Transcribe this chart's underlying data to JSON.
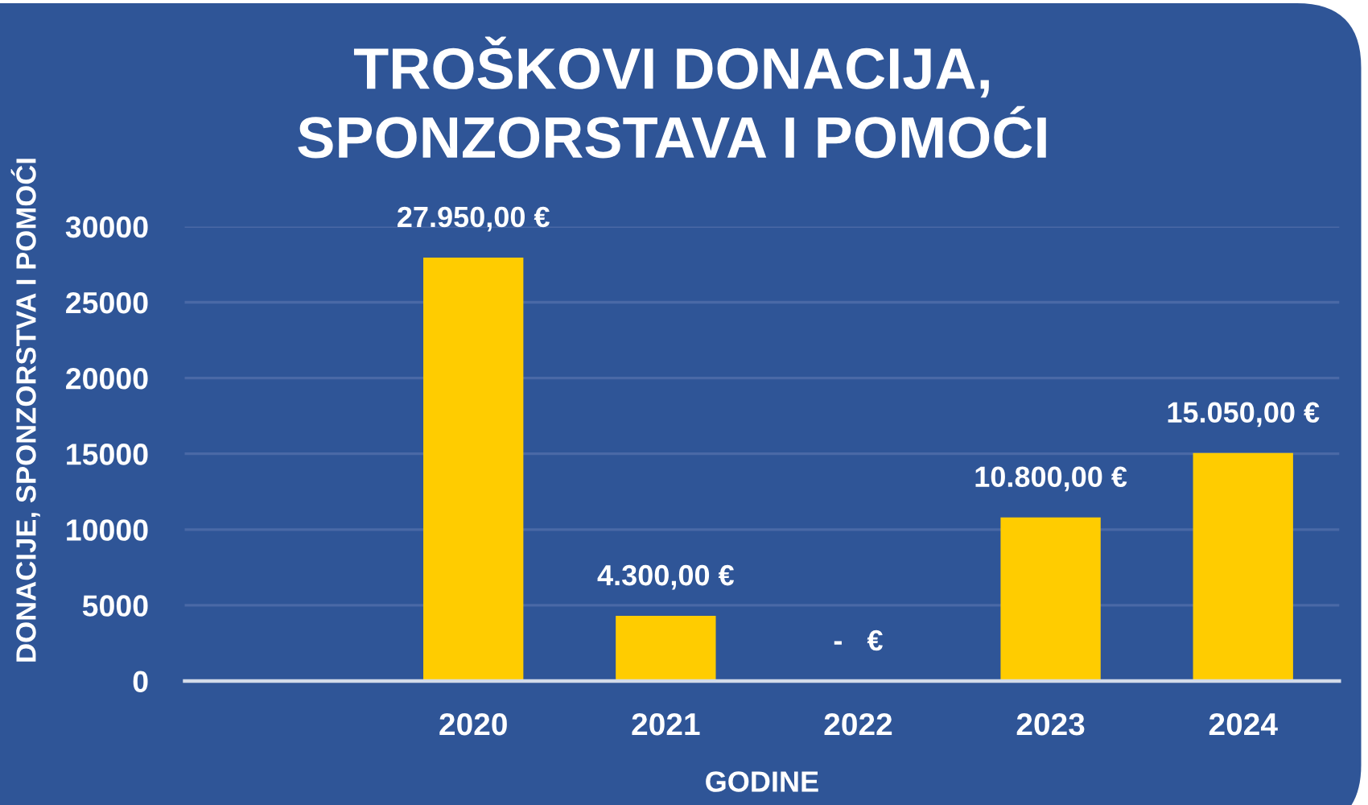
{
  "chart_data": {
    "type": "bar",
    "title": "TROŠKOVI DONACIJA,\nSPONZORSTAVA I POMOĆI",
    "xlabel": "GODINE",
    "ylabel": "DONACIJE, SPONZORSTVA I POMOĆI",
    "categories": [
      null,
      "2020",
      "2021",
      "2022",
      "2023",
      "2024"
    ],
    "values": [
      null,
      27950,
      4300,
      0,
      10800,
      15050
    ],
    "color": "#ffcc00",
    "value_labels": [
      null,
      "27.950,00 €",
      "4.300,00 €",
      "-   €",
      "10.800,00 €",
      "15.050,00 €"
    ],
    "ylim": [
      0,
      30000
    ],
    "yticks": [
      0,
      5000,
      10000,
      15000,
      20000,
      25000,
      30000
    ],
    "grid": "y"
  }
}
